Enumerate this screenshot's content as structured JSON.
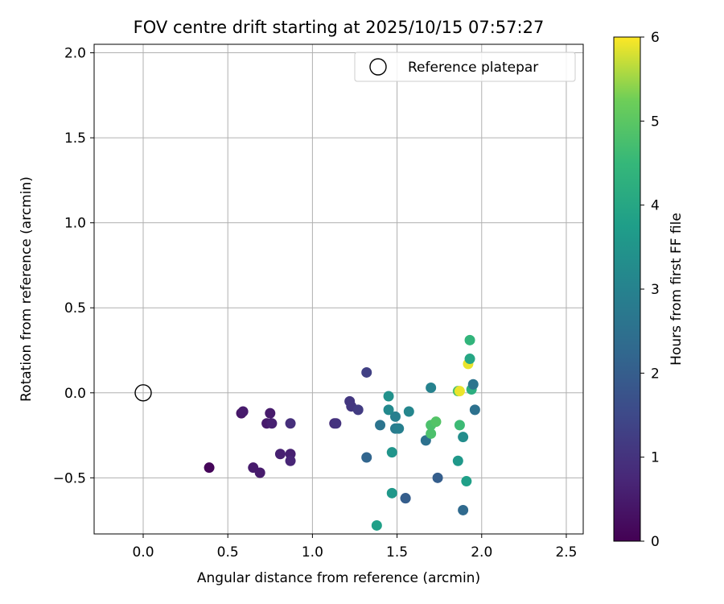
{
  "chart_data": {
    "type": "scatter",
    "title": "FOV centre drift starting at 2025/10/15 07:57:27",
    "xlabel": "Angular distance from reference (arcmin)",
    "ylabel": "Rotation from reference (arcmin)",
    "xlim": [
      -0.29,
      2.6
    ],
    "ylim": [
      -0.83,
      2.05
    ],
    "xticks": [
      0.0,
      0.5,
      1.0,
      1.5,
      2.0,
      2.5
    ],
    "xtick_labels": [
      "0.0",
      "0.5",
      "1.0",
      "1.5",
      "2.0",
      "2.5"
    ],
    "yticks": [
      -0.5,
      0.0,
      0.5,
      1.0,
      1.5,
      2.0
    ],
    "ytick_labels": [
      "−0.5",
      "0.0",
      "0.5",
      "1.0",
      "1.5",
      "2.0"
    ],
    "grid": true,
    "legend": {
      "position": "top-right",
      "entries": [
        "Reference platepar"
      ]
    },
    "reference_point": {
      "x": 0.0,
      "y": 0.0
    },
    "colorbar": {
      "label": "Hours from first FF file",
      "range": [
        0,
        6
      ],
      "ticks": [
        0,
        1,
        2,
        3,
        4,
        5,
        6
      ],
      "tick_labels": [
        "0",
        "1",
        "2",
        "3",
        "4",
        "5",
        "6"
      ],
      "colormap": "viridis"
    },
    "points": [
      {
        "x": 0.39,
        "y": -0.44,
        "h": 0.1
      },
      {
        "x": 0.58,
        "y": -0.12,
        "h": 0.4
      },
      {
        "x": 0.59,
        "y": -0.11,
        "h": 0.5
      },
      {
        "x": 0.65,
        "y": -0.44,
        "h": 0.5
      },
      {
        "x": 0.69,
        "y": -0.47,
        "h": 0.5
      },
      {
        "x": 0.73,
        "y": -0.18,
        "h": 0.5
      },
      {
        "x": 0.75,
        "y": -0.12,
        "h": 0.5
      },
      {
        "x": 0.76,
        "y": -0.18,
        "h": 0.6
      },
      {
        "x": 0.81,
        "y": -0.36,
        "h": 0.6
      },
      {
        "x": 0.87,
        "y": -0.36,
        "h": 0.6
      },
      {
        "x": 0.87,
        "y": -0.4,
        "h": 0.7
      },
      {
        "x": 0.87,
        "y": -0.18,
        "h": 0.9
      },
      {
        "x": 1.13,
        "y": -0.18,
        "h": 0.9
      },
      {
        "x": 1.14,
        "y": -0.18,
        "h": 1.0
      },
      {
        "x": 1.22,
        "y": -0.05,
        "h": 1.1
      },
      {
        "x": 1.23,
        "y": -0.08,
        "h": 1.1
      },
      {
        "x": 1.27,
        "y": -0.1,
        "h": 1.2
      },
      {
        "x": 1.32,
        "y": 0.12,
        "h": 1.3
      },
      {
        "x": 1.32,
        "y": -0.38,
        "h": 2.2
      },
      {
        "x": 1.4,
        "y": -0.19,
        "h": 2.6
      },
      {
        "x": 1.45,
        "y": -0.02,
        "h": 3.4
      },
      {
        "x": 1.45,
        "y": -0.1,
        "h": 3.2
      },
      {
        "x": 1.47,
        "y": -0.35,
        "h": 3.5
      },
      {
        "x": 1.47,
        "y": -0.59,
        "h": 3.6
      },
      {
        "x": 1.49,
        "y": -0.14,
        "h": 2.9
      },
      {
        "x": 1.49,
        "y": -0.21,
        "h": 2.8
      },
      {
        "x": 1.51,
        "y": -0.21,
        "h": 2.9
      },
      {
        "x": 1.38,
        "y": -0.78,
        "h": 3.8
      },
      {
        "x": 1.55,
        "y": -0.62,
        "h": 1.8
      },
      {
        "x": 1.55,
        "y": -0.62,
        "h": 2.0
      },
      {
        "x": 1.57,
        "y": -0.11,
        "h": 3.1
      },
      {
        "x": 1.67,
        "y": -0.28,
        "h": 2.5
      },
      {
        "x": 1.7,
        "y": 0.03,
        "h": 3.0
      },
      {
        "x": 1.7,
        "y": -0.19,
        "h": 4.8
      },
      {
        "x": 1.7,
        "y": -0.24,
        "h": 4.8
      },
      {
        "x": 1.73,
        "y": -0.17,
        "h": 4.9
      },
      {
        "x": 1.74,
        "y": -0.5,
        "h": 2.0
      },
      {
        "x": 1.86,
        "y": 0.01,
        "h": 4.8
      },
      {
        "x": 1.86,
        "y": -0.4,
        "h": 3.6
      },
      {
        "x": 1.87,
        "y": 0.01,
        "h": 5.9
      },
      {
        "x": 1.87,
        "y": -0.19,
        "h": 4.6
      },
      {
        "x": 1.89,
        "y": -0.26,
        "h": 3.3
      },
      {
        "x": 1.89,
        "y": -0.69,
        "h": 2.3
      },
      {
        "x": 1.91,
        "y": -0.52,
        "h": 3.8
      },
      {
        "x": 1.92,
        "y": 0.17,
        "h": 5.9
      },
      {
        "x": 1.93,
        "y": 0.31,
        "h": 4.4
      },
      {
        "x": 1.93,
        "y": 0.2,
        "h": 4.0
      },
      {
        "x": 1.94,
        "y": 0.02,
        "h": 4.2
      },
      {
        "x": 1.95,
        "y": 0.05,
        "h": 2.6
      },
      {
        "x": 1.96,
        "y": -0.1,
        "h": 2.5
      }
    ]
  }
}
